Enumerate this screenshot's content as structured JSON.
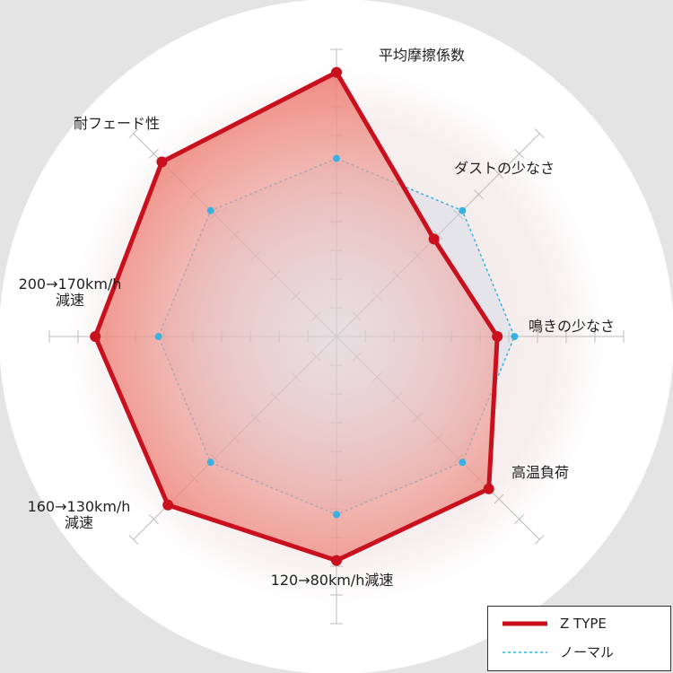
{
  "chart_data": {
    "type": "radar",
    "categories": [
      "平均摩擦係数",
      "ダストの少なさ",
      "鳴きの少なさ",
      "高温負荷",
      "120→80km/h減速",
      "160→130km/h\n減速",
      "200→170km/h\n減速",
      "耐フェード性"
    ],
    "rlim": [
      0,
      10
    ],
    "rticks": [
      1,
      2,
      3,
      4,
      5,
      6,
      7,
      8,
      9,
      10
    ],
    "series": [
      {
        "name": "Z TYPE",
        "color": "#c8101e",
        "values": [
          9.2,
          4.8,
          5.6,
          7.5,
          7.8,
          8.3,
          8.4,
          8.6
        ]
      },
      {
        "name": "ノーマル",
        "color": "#3ab0e0",
        "values": [
          6.2,
          6.2,
          6.2,
          6.2,
          6.2,
          6.2,
          6.2,
          6.2
        ]
      }
    ],
    "legend": "lower right"
  }
}
